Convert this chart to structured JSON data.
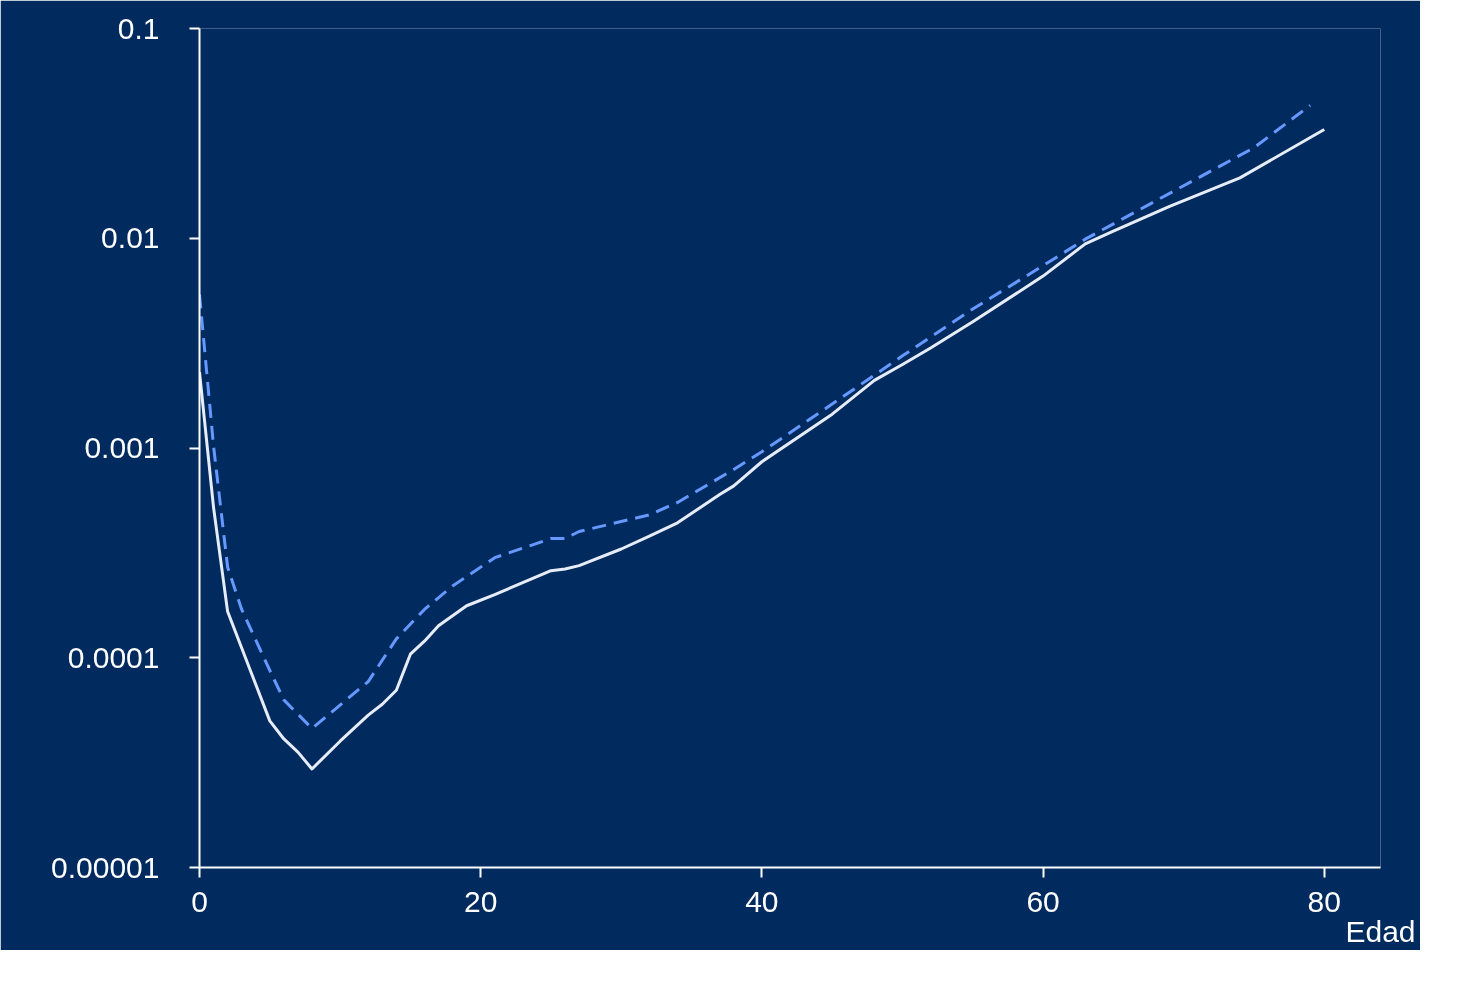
{
  "chart_data": {
    "type": "line",
    "xlabel": "Edad",
    "log": "y",
    "grid": false,
    "xlim": [
      0,
      84
    ],
    "ylim": [
      1e-05,
      0.1
    ],
    "xticks": [
      0,
      20,
      40,
      60,
      80
    ],
    "yticks": [
      {
        "value": 1e-05,
        "label": "0.00001"
      },
      0.0001,
      0.001,
      0.01,
      0.1
    ],
    "series": [
      {
        "color": "#e6ecf8",
        "line_style": "solid",
        "x": [
          0,
          1,
          2,
          5,
          6,
          7,
          8,
          10,
          12,
          13,
          14,
          15,
          16,
          17,
          19,
          21,
          25,
          26,
          27,
          30,
          32,
          34,
          37,
          38,
          40,
          45,
          48,
          50,
          52,
          55,
          60,
          63,
          65,
          69,
          74,
          80
        ],
        "values": [
          0.0023,
          0.00052,
          0.000166,
          5e-05,
          4.1e-05,
          3.55e-05,
          2.95e-05,
          4e-05,
          5.33e-05,
          6e-05,
          7e-05,
          0.000104,
          0.00012,
          0.000142,
          0.000177,
          0.0002,
          0.00026,
          0.000265,
          0.000275,
          0.00033,
          0.00038,
          0.00044,
          0.0006,
          0.00066,
          0.00086,
          0.00145,
          0.0021,
          0.0025,
          0.003,
          0.004,
          0.0066,
          0.0094,
          0.0108,
          0.0142,
          0.0194,
          0.033
        ]
      },
      {
        "color": "#6699ff",
        "line_style": "dashed",
        "x": [
          0,
          1,
          2,
          3,
          5,
          6,
          8,
          12,
          14,
          16,
          18,
          21,
          25,
          26,
          27,
          32,
          34,
          38,
          40,
          45,
          50,
          55,
          60,
          63,
          70,
          75,
          79
        ],
        "values": [
          0.0054,
          0.00102,
          0.00027,
          0.00017,
          8.7e-05,
          6.3e-05,
          4.6e-05,
          7.7e-05,
          0.000123,
          0.00017,
          0.00022,
          0.0003,
          0.00037,
          0.00037,
          0.0004,
          0.00048,
          0.00055,
          0.00079,
          0.00096,
          0.00162,
          0.00275,
          0.0046,
          0.0074,
          0.0099,
          0.0178,
          0.027,
          0.043
        ]
      }
    ]
  }
}
